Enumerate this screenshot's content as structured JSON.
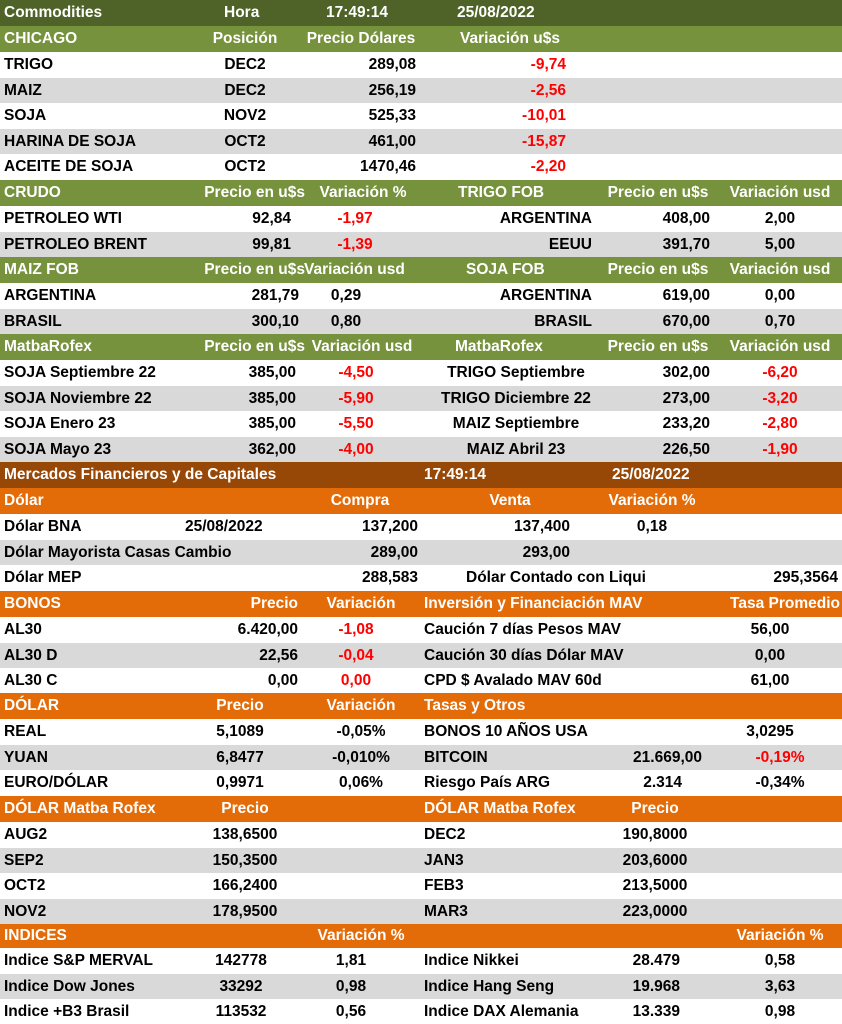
{
  "colors": {
    "title_bar": "#4f6228",
    "section_green": "#76923c",
    "fin_bar": "#974706",
    "section_orange": "#e36c09",
    "row_light": "#ffffff",
    "row_gray": "#d9d9d9",
    "header_text": "#ffffff",
    "body_text": "#000000",
    "negative": "#ff0000"
  },
  "commodities": {
    "title": "Commodities",
    "hora_label": "Hora",
    "time": "17:49:14",
    "date": "25/08/2022",
    "chicago": {
      "header": "CHICAGO",
      "col_posicion": "Posición",
      "col_precio": "Precio Dólares",
      "col_variacion": "Variación u$s",
      "rows": [
        {
          "name": "TRIGO",
          "pos": "DEC2",
          "price": "289,08",
          "var": "-9,74"
        },
        {
          "name": "MAIZ",
          "pos": "DEC2",
          "price": "256,19",
          "var": "-2,56"
        },
        {
          "name": "SOJA",
          "pos": "NOV2",
          "price": "525,33",
          "var": "-10,01"
        },
        {
          "name": "HARINA DE SOJA",
          "pos": "OCT2",
          "price": "461,00",
          "var": "-15,87"
        },
        {
          "name": "ACEITE DE SOJA",
          "pos": "OCT2",
          "price": "1470,46",
          "var": "-2,20"
        }
      ]
    },
    "crudo": {
      "header": "CRUDO",
      "col_precio": "Precio en u$s",
      "col_variacion": "Variación %",
      "rows": [
        {
          "name": "PETROLEO WTI",
          "price": "92,84",
          "var": "-1,97"
        },
        {
          "name": "PETROLEO BRENT",
          "price": "99,81",
          "var": "-1,39"
        }
      ]
    },
    "trigo_fob": {
      "header": "TRIGO FOB",
      "col_precio": "Precio en u$s",
      "col_variacion": "Variación usd",
      "rows": [
        {
          "name": "ARGENTINA",
          "price": "408,00",
          "var": "2,00"
        },
        {
          "name": "EEUU",
          "price": "391,70",
          "var": "5,00"
        }
      ]
    },
    "maiz_fob": {
      "header": "MAIZ FOB",
      "col_precio": "Precio en u$s",
      "col_variacion": "Variación usd",
      "rows": [
        {
          "name": "ARGENTINA",
          "price": "281,79",
          "var": "0,29"
        },
        {
          "name": "BRASIL",
          "price": "300,10",
          "var": "0,80"
        }
      ]
    },
    "soja_fob": {
      "header": "SOJA FOB",
      "col_precio": "Precio en u$s",
      "col_variacion": "Variación usd",
      "rows": [
        {
          "name": "ARGENTINA",
          "price": "619,00",
          "var": "0,00"
        },
        {
          "name": "BRASIL",
          "price": "670,00",
          "var": "0,70"
        }
      ]
    },
    "matba_left": {
      "header": "MatbaRofex",
      "col_precio": "Precio en u$s",
      "col_variacion": "Variación usd",
      "rows": [
        {
          "name": "SOJA Septiembre 22",
          "price": "385,00",
          "var": "-4,50"
        },
        {
          "name": "SOJA Noviembre 22",
          "price": "385,00",
          "var": "-5,90"
        },
        {
          "name": "SOJA Enero 23",
          "price": "385,00",
          "var": "-5,50"
        },
        {
          "name": "SOJA Mayo 23",
          "price": "362,00",
          "var": "-4,00"
        }
      ]
    },
    "matba_right": {
      "header": "MatbaRofex",
      "col_precio": "Precio en u$s",
      "col_variacion": "Variación usd",
      "rows": [
        {
          "name": "TRIGO Septiembre",
          "price": "302,00",
          "var": "-6,20"
        },
        {
          "name": "TRIGO Diciembre 22",
          "price": "273,00",
          "var": "-3,20"
        },
        {
          "name": "MAIZ Septiembre",
          "price": "233,20",
          "var": "-2,80"
        },
        {
          "name": "MAIZ Abril 23",
          "price": "226,50",
          "var": "-1,90"
        }
      ]
    }
  },
  "financial": {
    "title": "Mercados Financieros y de Capitales",
    "time": "17:49:14",
    "date": "25/08/2022",
    "dolar": {
      "header": "Dólar",
      "col_compra": "Compra",
      "col_venta": "Venta",
      "col_variacion": "Variación %",
      "bna": {
        "name": "Dólar BNA",
        "date": "25/08/2022",
        "compra": "137,200",
        "venta": "137,400",
        "var": "0,18"
      },
      "mayorista": {
        "name": "Dólar Mayorista Casas Cambio",
        "compra": "289,00",
        "venta": "293,00"
      },
      "mep": {
        "name": "Dólar MEP",
        "compra": "288,583",
        "ccl_label": "Dólar Contado con Liqui",
        "ccl_value": "295,3564"
      }
    },
    "bonos": {
      "header": "BONOS",
      "col_precio": "Precio",
      "col_variacion": "Variación",
      "rows": [
        {
          "name": "AL30",
          "price": "6.420,00",
          "var": "-1,08"
        },
        {
          "name": "AL30 D",
          "price": "22,56",
          "var": "-0,04"
        },
        {
          "name": "AL30 C",
          "price": "0,00",
          "var": "0,00"
        }
      ]
    },
    "mav": {
      "header": "Inversión y Financiación MAV",
      "col_tasa": "Tasa Promedio",
      "rows": [
        {
          "name": "Caución 7 días Pesos MAV",
          "rate": "56,00"
        },
        {
          "name": "Caución 30 días Dólar MAV",
          "rate": "0,00"
        },
        {
          "name": "CPD $ Avalado  MAV 60d",
          "rate": "61,00"
        }
      ]
    },
    "fx": {
      "header": "DÓLAR",
      "col_precio": "Precio",
      "col_variacion": "Variación",
      "rows": [
        {
          "name": "REAL",
          "price": "5,1089",
          "var": "-0,05%"
        },
        {
          "name": "YUAN",
          "price": "6,8477",
          "var": "-0,010%"
        },
        {
          "name": "EURO/DÓLAR",
          "price": "0,9971",
          "var": "0,06%"
        }
      ]
    },
    "tasas": {
      "header": "Tasas y Otros",
      "bonos10": {
        "name": "BONOS 10 AÑOS USA",
        "value": "3,0295"
      },
      "bitcoin": {
        "name": "BITCOIN",
        "value": "21.669,00",
        "var": "-0,19%"
      },
      "riesgo": {
        "name": "Riesgo País ARG",
        "value": "2.314",
        "var": "-0,34%"
      }
    },
    "futures_left": {
      "header": "DÓLAR Matba Rofex",
      "col_precio": "Precio",
      "rows": [
        {
          "name": "AUG2",
          "price": "138,6500"
        },
        {
          "name": "SEP2",
          "price": "150,3500"
        },
        {
          "name": "OCT2",
          "price": "166,2400"
        },
        {
          "name": "NOV2",
          "price": "178,9500"
        }
      ]
    },
    "futures_right": {
      "header": "DÓLAR Matba Rofex",
      "col_precio": "Precio",
      "rows": [
        {
          "name": "DEC2",
          "price": "190,8000"
        },
        {
          "name": "JAN3",
          "price": "203,6000"
        },
        {
          "name": "FEB3",
          "price": "213,5000"
        },
        {
          "name": "MAR3",
          "price": "223,0000"
        }
      ]
    },
    "indices": {
      "header": "INDICES",
      "col_variacion_left": "Variación %",
      "col_variacion_right": "Variación %",
      "left": [
        {
          "name": "Indice S&P MERVAL",
          "value": "142778",
          "var": "1,81"
        },
        {
          "name": "Indice Dow Jones",
          "value": "33292",
          "var": "0,98"
        },
        {
          "name": "Indice +B3 Brasil",
          "value": "113532",
          "var": "0,56"
        }
      ],
      "right": [
        {
          "name": "Indice Nikkei",
          "value": "28.479",
          "var": "0,58"
        },
        {
          "name": "Indice Hang Seng",
          "value": "19.968",
          "var": "3,63"
        },
        {
          "name": "Indice DAX Alemania",
          "value": "13.339",
          "var": "0,98"
        }
      ]
    }
  }
}
